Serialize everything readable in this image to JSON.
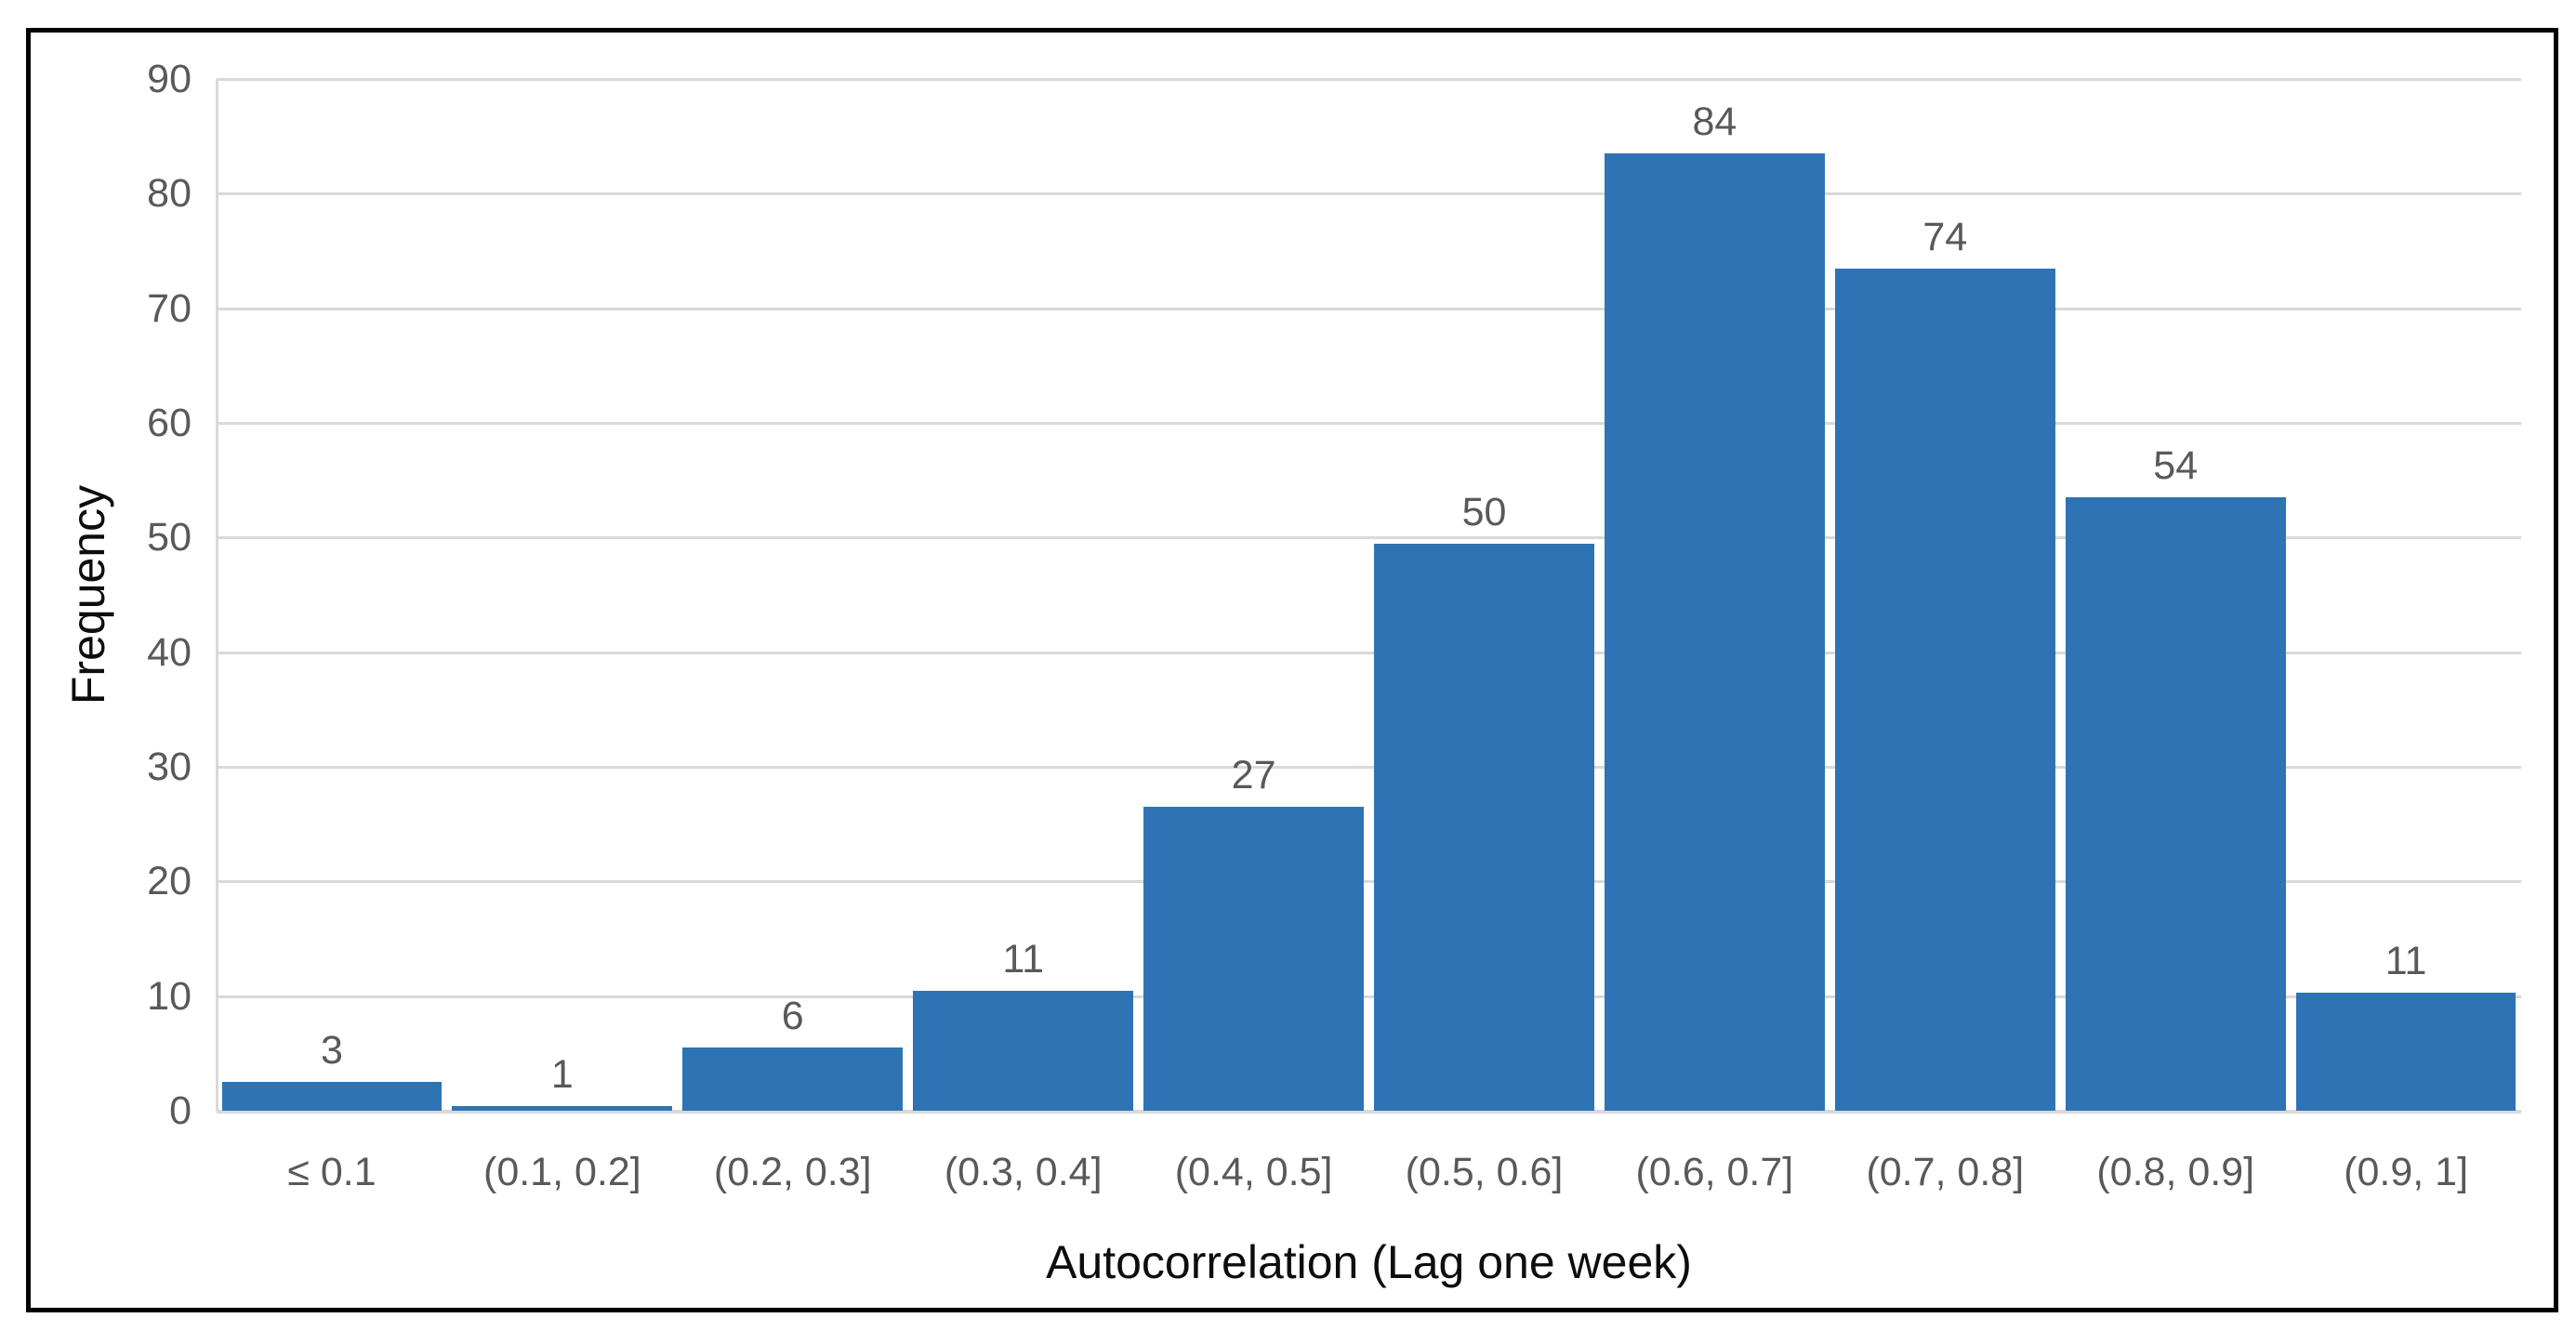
{
  "figure": {
    "y_axis_title": "Frequency",
    "x_axis_title": "Autocorrelation (Lag one week)"
  },
  "colors": {
    "bar": "#2e74b5",
    "gridline": "#d9d9d9",
    "tick_label": "#595959",
    "data_label": "#595959",
    "axis_title": "#0d0d0d",
    "frame_border": "#000000",
    "background": "#ffffff"
  },
  "chart_data": {
    "type": "bar",
    "title": "",
    "xlabel": "Autocorrelation (Lag one week)",
    "ylabel": "Frequency",
    "categories": [
      "≤ 0.1",
      "(0.1, 0.2]",
      "(0.2, 0.3]",
      "(0.3, 0.4]",
      "(0.4, 0.5]",
      "(0.5, 0.6]",
      "(0.6, 0.7]",
      "(0.7, 0.8]",
      "(0.8, 0.9]",
      "(0.9, 1]"
    ],
    "values": [
      3,
      1,
      6,
      11,
      27,
      50,
      84,
      74,
      54,
      11
    ],
    "data_label_texts": [
      "3",
      "1",
      "6",
      "11",
      "27",
      "50",
      "84",
      "74",
      "54",
      "11"
    ],
    "bar_heights_plotted": [
      2.5,
      0.4,
      5.5,
      10.5,
      26.5,
      49.5,
      83.5,
      73.5,
      53.5,
      10.3
    ],
    "ylim": [
      0,
      90
    ],
    "y_ticks": [
      0,
      10,
      20,
      30,
      40,
      50,
      60,
      70,
      80,
      90
    ],
    "grid": "horizontal gridlines at each y tick",
    "legend": "none",
    "data_labels": "above bars"
  }
}
